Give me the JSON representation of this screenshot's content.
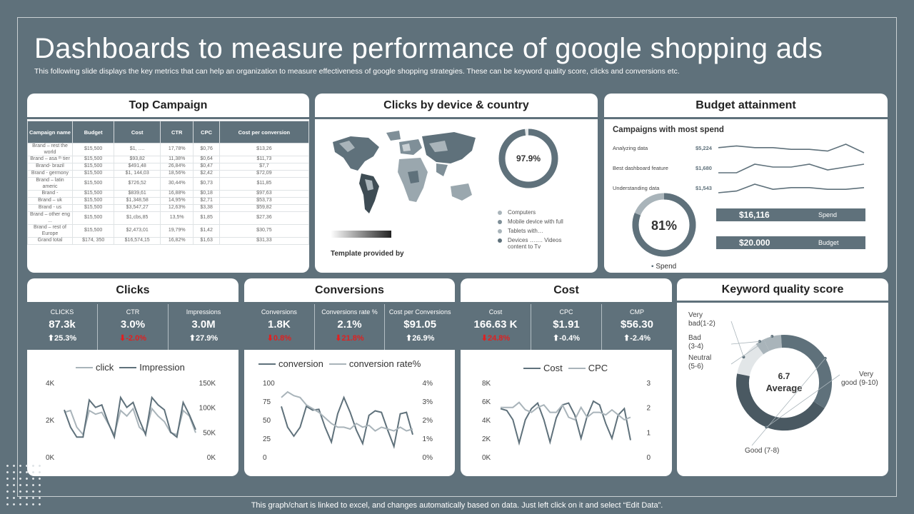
{
  "page": {
    "title": "Dashboards to measure performance of google shopping ads",
    "subtitle": "This following slide displays the key metrics that can help an organization to measure effectiveness of google shopping strategies. These can be keyword quality score, clicks and conversions etc.",
    "footer": "This graph/chart is linked to excel, and changes automatically based on data. Just left click on it and select “Edit Data”."
  },
  "colors": {
    "slate": "#5f717b",
    "light": "#a9b4ba",
    "red": "#e02020"
  },
  "top_campaign": {
    "heading": "Top Campaign",
    "columns": [
      "Campaign name",
      "Budget",
      "Cost",
      "CTR",
      "CPC",
      "Cost per conversion"
    ],
    "rows": [
      [
        "Brand – rest the world",
        "$15,500",
        "$1, ….",
        "17,78%",
        "$0,76",
        "$13,26"
      ],
      [
        "Brand – asa ᵗʰ tier",
        "$15,500",
        "$93,82",
        "11,38%",
        "$0,64",
        "$11,73"
      ],
      [
        "Brand- brazil",
        "$15,500",
        "$491,48",
        "26,84%",
        "$0,47",
        "$7,7"
      ],
      [
        "Brand - germony",
        "$15,500",
        "$1, 144,03",
        "18,56%",
        "$2,42",
        "$72,09"
      ],
      [
        "Brand – latin americ",
        "$15,500",
        "$726,52",
        "30,44%",
        "$0,73",
        "$11,85"
      ],
      [
        "Brand -",
        "$15,500",
        "$839,61",
        "16,88%",
        "$0,18",
        "$97,63"
      ],
      [
        "Brand – uk",
        "$15,500",
        "$1,348,58",
        "14,95%",
        "$2,71",
        "$53,73"
      ],
      [
        "Brand - us",
        "$15,500",
        "$3,547,27",
        "12,63%",
        "$3,38",
        "$59,82"
      ],
      [
        "Brand – other eng ...",
        "$15,500",
        "$1,cbs,85",
        "13,5%",
        "$1,85",
        "$27,36"
      ],
      [
        "Brand – rest of Europe",
        "$15,500",
        "$2,473,01",
        "19,79%",
        "$1,42",
        "$30,75"
      ],
      [
        "Grand total",
        "$174, 350",
        "$16,574,15",
        "16,82%",
        "$1,63",
        "$31,33"
      ]
    ]
  },
  "clicks_device": {
    "heading": "Clicks by device & country",
    "donut_value": "97.9%",
    "donut_fraction": 0.979,
    "template_note": "Template provided by",
    "legend": [
      {
        "label": "Computers",
        "color": "#a9b4ba"
      },
      {
        "label": "Mobile device with full",
        "color": "#7f8f98"
      },
      {
        "label": "Tablets with…",
        "color": "#a9b4ba"
      },
      {
        "label": "Devices ……. Videos content to Tv",
        "color": "#5f717b"
      }
    ]
  },
  "budget": {
    "heading": "Budget attainment",
    "sub": "Campaigns with most spend",
    "items": [
      {
        "label": "Analyzing data",
        "value": "$5,224",
        "spark": [
          5,
          6,
          5,
          5,
          4,
          4,
          3,
          7,
          2
        ]
      },
      {
        "label": "Best dashboard feature",
        "value": "$1,680",
        "spark": [
          3,
          3,
          6,
          5,
          5,
          6,
          4,
          5,
          6
        ]
      },
      {
        "label": "Understanding data",
        "value": "$1,543",
        "spark": [
          2,
          3,
          7,
          4,
          5,
          5,
          4,
          4,
          5
        ]
      }
    ],
    "donut_value": "81%",
    "donut_fraction": 0.81,
    "donut_legend": "Spend",
    "spend_value": "$16,116",
    "spend_label": "Spend",
    "budget_value": "$20.000",
    "budget_label": "Budget"
  },
  "clicks": {
    "heading": "Clicks",
    "metrics": [
      {
        "label": "CLICKS",
        "value": "87.3k",
        "delta": "25.3%",
        "dir": "up"
      },
      {
        "label": "CTR",
        "value": "3.0%",
        "delta": "-2.0%",
        "dir": "down"
      },
      {
        "label": "Impressions",
        "value": "3.0M",
        "delta": "27.9%",
        "dir": "up"
      }
    ],
    "legend": [
      "click",
      "Impression"
    ],
    "y_left": [
      "4K",
      "2K",
      "0K"
    ],
    "y_right": [
      "150K",
      "100K",
      "50K",
      "0K"
    ]
  },
  "conversions": {
    "heading": "Conversions",
    "metrics": [
      {
        "label": "Conversions",
        "value": "1.8K",
        "delta": "0.8%",
        "dir": "down"
      },
      {
        "label": "Conversions rate %",
        "value": "2.1%",
        "delta": "21.8%",
        "dir": "down"
      },
      {
        "label": "Cost per Conversions",
        "value": "$91.05",
        "delta": "26.9%",
        "dir": "up"
      }
    ],
    "legend": [
      "conversion",
      "conversion rate%"
    ],
    "y_left": [
      "100",
      "75",
      "50",
      "25",
      "0"
    ],
    "y_right": [
      "4%",
      "3%",
      "2%",
      "1%",
      "0%"
    ]
  },
  "cost": {
    "heading": "Cost",
    "metrics": [
      {
        "label": "Cost",
        "value": "166.63 K",
        "delta": "24.8%",
        "dir": "down"
      },
      {
        "label": "CPC",
        "value": "$1.91",
        "delta": "-0.4%",
        "dir": "up"
      },
      {
        "label": "CMP",
        "value": "$56.30",
        "delta": "-2.4%",
        "dir": "up"
      }
    ],
    "legend": [
      "Cost",
      "CPC"
    ],
    "y_left": [
      "8K",
      "6K",
      "4K",
      "2K",
      "0K"
    ],
    "y_right": [
      "3",
      "2",
      "1",
      "0"
    ]
  },
  "keyword": {
    "heading": "Keyword quality score",
    "center_value": "6.7",
    "center_label": "Average",
    "labels": [
      "Very bad(1-2)",
      "Bad (3-4)",
      "Neutral (5-6)",
      "Good (7-8)",
      "Very good (9-10)"
    ]
  },
  "chart_data": [
    {
      "type": "line",
      "title": "Clicks",
      "x": [
        1,
        2,
        3,
        4,
        5,
        6,
        7,
        8,
        9,
        10,
        11,
        12,
        13,
        14,
        15,
        16,
        17,
        18,
        19,
        20,
        21,
        22
      ],
      "series": [
        {
          "name": "click",
          "values": [
            2.4,
            2.5,
            1.6,
            1.2,
            2.5,
            2.3,
            2.4,
            1.8,
            1.2,
            2.5,
            2.2,
            2.6,
            1.6,
            1.3,
            2.6,
            2.2,
            1.9,
            1.3,
            1.2,
            2.5,
            2.2,
            1.3
          ]
        },
        {
          "name": "Impression",
          "values": [
            95,
            60,
            40,
            40,
            115,
            100,
            105,
            70,
            40,
            120,
            100,
            110,
            75,
            45,
            120,
            105,
            95,
            50,
            40,
            110,
            85,
            55
          ]
        }
      ],
      "ylim_left": [
        0,
        4000
      ],
      "ylim_right": [
        0,
        150000
      ]
    },
    {
      "type": "line",
      "title": "Conversions",
      "x": [
        1,
        2,
        3,
        4,
        5,
        6,
        7,
        8,
        9,
        10,
        11,
        12,
        13,
        14,
        15,
        16,
        17,
        18,
        19,
        20,
        21,
        22
      ],
      "series": [
        {
          "name": "conversion",
          "values": [
            68,
            40,
            28,
            40,
            68,
            63,
            64,
            40,
            20,
            58,
            80,
            60,
            36,
            18,
            56,
            62,
            60,
            36,
            14,
            58,
            60,
            30
          ]
        },
        {
          "name": "conversion rate%",
          "values": [
            3.2,
            3.5,
            3.3,
            3.2,
            2.8,
            2.6,
            2.4,
            2.1,
            1.8,
            1.6,
            1.6,
            1.5,
            1.8,
            1.6,
            1.7,
            1.4,
            1.6,
            1.5,
            1.4,
            1.6,
            1.4,
            1.5
          ]
        }
      ],
      "ylim_left": [
        0,
        100
      ],
      "ylim_right": [
        0,
        4
      ]
    },
    {
      "type": "line",
      "title": "Cost",
      "x": [
        1,
        2,
        3,
        4,
        5,
        6,
        7,
        8,
        9,
        10,
        11,
        12,
        13,
        14,
        15,
        16,
        17,
        18,
        19,
        20,
        21,
        22
      ],
      "series": [
        {
          "name": "Cost",
          "values": [
            5.2,
            5.0,
            4.0,
            1.5,
            4.0,
            5.2,
            5.8,
            4.0,
            1.6,
            4.2,
            5.6,
            5.8,
            4.5,
            2.0,
            4.4,
            6.0,
            5.6,
            3.6,
            2.0,
            4.5,
            5.2,
            1.8
          ]
        },
        {
          "name": "CPC",
          "values": [
            2.0,
            2.0,
            2.0,
            2.2,
            1.9,
            1.8,
            2.0,
            2.1,
            1.8,
            1.8,
            2.1,
            1.6,
            1.5,
            2.0,
            1.6,
            1.8,
            1.8,
            1.7,
            1.9,
            1.7,
            1.5,
            1.6
          ]
        }
      ],
      "ylim_left": [
        0,
        8000
      ],
      "ylim_right": [
        0,
        3
      ]
    },
    {
      "type": "pie",
      "title": "Keyword quality score",
      "categories": [
        "Very bad(1-2)",
        "Bad (3-4)",
        "Neutral (5-6)",
        "Good (7-8)",
        "Very good (9-10)"
      ],
      "values": [
        12,
        3,
        6,
        35,
        44
      ]
    }
  ]
}
